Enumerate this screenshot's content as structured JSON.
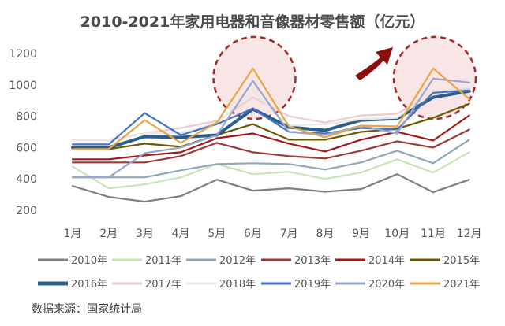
{
  "chart_data": {
    "type": "line",
    "title": "2010-2021年家用电器和音像器材零售额（亿元）",
    "source": "数据来源：国家统计局",
    "categories": [
      "1月",
      "2月",
      "3月",
      "4月",
      "5月",
      "6月",
      "7月",
      "8月",
      "9月",
      "10月",
      "11月",
      "12月"
    ],
    "ylim": [
      200,
      1200
    ],
    "yticks": [
      200,
      400,
      600,
      800,
      1000,
      1200
    ],
    "grid": false,
    "legend_position": "bottom",
    "series": [
      {
        "name": "2010年",
        "color": "#7f7f7f",
        "width": 2.2,
        "values": [
          355,
          285,
          255,
          290,
          395,
          325,
          340,
          318,
          335,
          430,
          315,
          395
        ]
      },
      {
        "name": "2011年",
        "color": "#c6e5b3",
        "width": 2.2,
        "values": [
          480,
          340,
          365,
          410,
          495,
          430,
          445,
          400,
          440,
          525,
          440,
          570
        ]
      },
      {
        "name": "2012年",
        "color": "#8fa8b8",
        "width": 2.2,
        "values": [
          410,
          410,
          410,
          455,
          495,
          500,
          495,
          460,
          505,
          580,
          500,
          650
        ]
      },
      {
        "name": "2013年",
        "color": "#9b3a3a",
        "width": 2.2,
        "values": [
          505,
          505,
          505,
          545,
          630,
          570,
          545,
          530,
          580,
          640,
          600,
          715
        ]
      },
      {
        "name": "2014年",
        "color": "#a11a1a",
        "width": 2.2,
        "values": [
          525,
          525,
          550,
          570,
          660,
          690,
          625,
          575,
          650,
          700,
          645,
          805
        ]
      },
      {
        "name": "2015年",
        "color": "#6b5a00",
        "width": 2.2,
        "values": [
          590,
          590,
          625,
          605,
          680,
          750,
          650,
          650,
          700,
          720,
          790,
          880
        ]
      },
      {
        "name": "2016年",
        "color": "#2a5e8c",
        "width": 4,
        "values": [
          600,
          600,
          670,
          665,
          680,
          845,
          730,
          710,
          775,
          785,
          920,
          960
        ]
      },
      {
        "name": "2017年",
        "color": "#eccccc",
        "width": 2.2,
        "values": [
          650,
          650,
          690,
          725,
          770,
          920,
          800,
          760,
          805,
          815,
          950,
          975
        ]
      },
      {
        "name": "2018年",
        "color": "#e8e8e8",
        "width": 2.2,
        "values": [
          645,
          645,
          690,
          695,
          755,
          960,
          740,
          750,
          780,
          790,
          960,
          985
        ]
      },
      {
        "name": "2019年",
        "color": "#4472c4",
        "width": 2.2,
        "values": [
          620,
          620,
          820,
          680,
          750,
          850,
          700,
          690,
          725,
          715,
          950,
          965
        ]
      },
      {
        "name": "2020年",
        "color": "#9aa4cc",
        "width": 2.2,
        "values": [
          410,
          410,
          565,
          600,
          680,
          1025,
          700,
          680,
          740,
          690,
          1040,
          1015
        ]
      },
      {
        "name": "2021年",
        "color": "#e8a548",
        "width": 2.2,
        "values": [
          590,
          590,
          775,
          630,
          760,
          1105,
          735,
          665,
          740,
          735,
          1105,
          910
        ]
      }
    ]
  }
}
